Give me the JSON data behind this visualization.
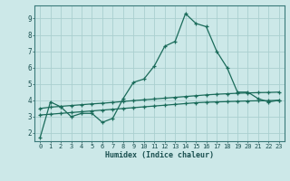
{
  "xlabel": "Humidex (Indice chaleur)",
  "ylabel": "",
  "bg_color": "#cce8e8",
  "grid_color": "#aacfcf",
  "line_color": "#1a6b5a",
  "xlim": [
    -0.5,
    23.5
  ],
  "ylim": [
    1.5,
    9.8
  ],
  "yticks": [
    2,
    3,
    4,
    5,
    6,
    7,
    8,
    9
  ],
  "xticks": [
    0,
    1,
    2,
    3,
    4,
    5,
    6,
    7,
    8,
    9,
    10,
    11,
    12,
    13,
    14,
    15,
    16,
    17,
    18,
    19,
    20,
    21,
    22,
    23
  ],
  "series1_x": [
    0,
    1,
    2,
    3,
    4,
    5,
    6,
    7,
    8,
    9,
    10,
    11,
    12,
    13,
    14,
    15,
    16,
    17,
    18,
    19,
    20,
    21,
    22,
    23
  ],
  "series1_y": [
    1.7,
    3.9,
    3.6,
    3.0,
    3.2,
    3.2,
    2.65,
    2.9,
    4.1,
    5.1,
    5.3,
    6.1,
    7.3,
    7.6,
    9.3,
    8.7,
    8.5,
    7.0,
    6.0,
    4.5,
    4.5,
    4.1,
    3.9,
    4.0
  ],
  "series2_x": [
    0,
    1,
    2,
    3,
    4,
    5,
    6,
    7,
    8,
    9,
    10,
    11,
    12,
    13,
    14,
    15,
    16,
    17,
    18,
    19,
    20,
    21,
    22,
    23
  ],
  "series2_y": [
    3.5,
    3.58,
    3.63,
    3.68,
    3.73,
    3.78,
    3.82,
    3.87,
    3.93,
    3.98,
    4.03,
    4.08,
    4.13,
    4.18,
    4.23,
    4.28,
    4.33,
    4.37,
    4.4,
    4.43,
    4.45,
    4.47,
    4.48,
    4.5
  ],
  "series3_x": [
    0,
    1,
    2,
    3,
    4,
    5,
    6,
    7,
    8,
    9,
    10,
    11,
    12,
    13,
    14,
    15,
    16,
    17,
    18,
    19,
    20,
    21,
    22,
    23
  ],
  "series3_y": [
    3.1,
    3.15,
    3.2,
    3.25,
    3.3,
    3.35,
    3.4,
    3.45,
    3.5,
    3.55,
    3.6,
    3.65,
    3.7,
    3.75,
    3.8,
    3.85,
    3.88,
    3.9,
    3.92,
    3.94,
    3.96,
    3.97,
    3.98,
    4.0
  ]
}
